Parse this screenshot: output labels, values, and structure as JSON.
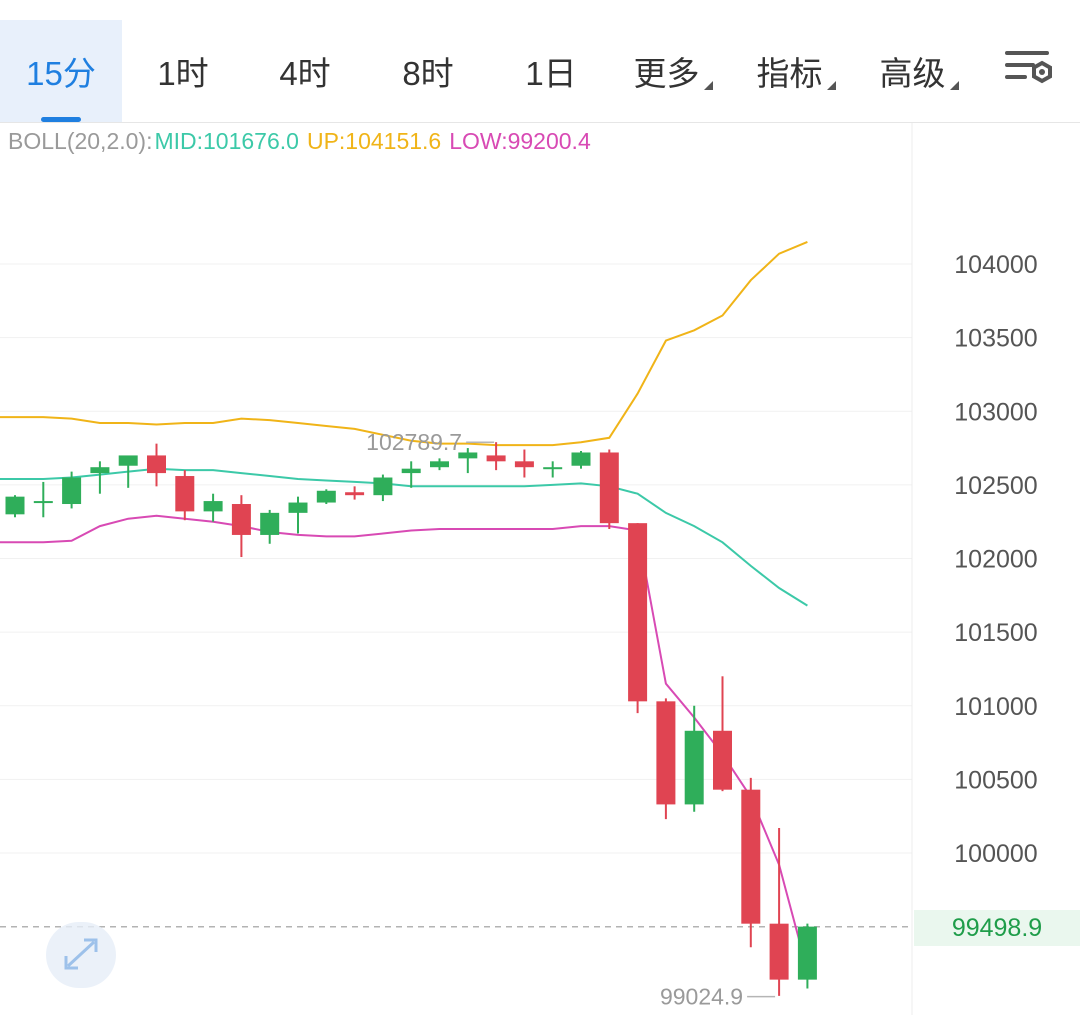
{
  "tabs": [
    {
      "label": "15分",
      "active": true,
      "dropdown": false
    },
    {
      "label": "1时",
      "active": false,
      "dropdown": false
    },
    {
      "label": "4时",
      "active": false,
      "dropdown": false
    },
    {
      "label": "8时",
      "active": false,
      "dropdown": false
    },
    {
      "label": "1日",
      "active": false,
      "dropdown": false
    },
    {
      "label": "更多",
      "active": false,
      "dropdown": true
    },
    {
      "label": "指标",
      "active": false,
      "dropdown": true
    },
    {
      "label": "高级",
      "active": false,
      "dropdown": true
    }
  ],
  "settings_icon": "chart-settings-icon",
  "legend": {
    "label": "BOLL(20,2.0):",
    "mid": "MID:101676.0",
    "up": "UP:104151.6",
    "low": "LOW:99200.4"
  },
  "colors": {
    "accent": "#1f7fe0",
    "up_candle": "#2fae5a",
    "down_candle": "#e04452",
    "mid_line": "#3cc9a8",
    "up_line": "#f0b418",
    "low_line": "#d84ab4",
    "label_gray": "#9a9a9a"
  },
  "current_price": "99498.9",
  "expand_icon": "expand-icon",
  "chart_data": {
    "type": "candlestick",
    "yticks": [
      "104000",
      "103500",
      "103000",
      "102500",
      "102000",
      "101500",
      "101000",
      "100500",
      "100000"
    ],
    "ylim": [
      98950,
      104950
    ],
    "high_marker": "102789.7",
    "low_marker": "99024.9",
    "candles": [
      {
        "o": 102300,
        "h": 102430,
        "c": 102420,
        "l": 102280
      },
      {
        "o": 102380,
        "h": 102520,
        "c": 102390,
        "l": 102280
      },
      {
        "o": 102370,
        "h": 102590,
        "c": 102550,
        "l": 102340
      },
      {
        "o": 102580,
        "h": 102660,
        "c": 102620,
        "l": 102440
      },
      {
        "o": 102630,
        "h": 102680,
        "c": 102700,
        "l": 102480
      },
      {
        "o": 102700,
        "h": 102780,
        "c": 102580,
        "l": 102490
      },
      {
        "o": 102560,
        "h": 102600,
        "c": 102320,
        "l": 102260
      },
      {
        "o": 102320,
        "h": 102440,
        "c": 102390,
        "l": 102250
      },
      {
        "o": 102370,
        "h": 102430,
        "c": 102160,
        "l": 102010
      },
      {
        "o": 102160,
        "h": 102330,
        "c": 102310,
        "l": 102100
      },
      {
        "o": 102310,
        "h": 102420,
        "c": 102380,
        "l": 102170
      },
      {
        "o": 102380,
        "h": 102470,
        "c": 102460,
        "l": 102370
      },
      {
        "o": 102450,
        "h": 102490,
        "c": 102430,
        "l": 102400
      },
      {
        "o": 102430,
        "h": 102570,
        "c": 102550,
        "l": 102390
      },
      {
        "o": 102580,
        "h": 102660,
        "c": 102610,
        "l": 102480
      },
      {
        "o": 102620,
        "h": 102680,
        "c": 102660,
        "l": 102600
      },
      {
        "o": 102680,
        "h": 102750,
        "c": 102720,
        "l": 102580
      },
      {
        "o": 102700,
        "h": 102790,
        "c": 102660,
        "l": 102600
      },
      {
        "o": 102660,
        "h": 102740,
        "c": 102620,
        "l": 102550
      },
      {
        "o": 102610,
        "h": 102660,
        "c": 102620,
        "l": 102550
      },
      {
        "o": 102630,
        "h": 102730,
        "c": 102720,
        "l": 102610
      },
      {
        "o": 102720,
        "h": 102740,
        "c": 102240,
        "l": 102200
      },
      {
        "o": 102240,
        "h": 102240,
        "c": 101030,
        "l": 100950
      },
      {
        "o": 101030,
        "h": 101050,
        "c": 100330,
        "l": 100230
      },
      {
        "o": 100330,
        "h": 101000,
        "c": 100830,
        "l": 100280
      },
      {
        "o": 100830,
        "h": 101200,
        "c": 100430,
        "l": 100420
      },
      {
        "o": 100430,
        "h": 100510,
        "c": 99520,
        "l": 99360
      },
      {
        "o": 99520,
        "h": 100170,
        "c": 99140,
        "l": 99030
      },
      {
        "o": 99140,
        "h": 99520,
        "c": 99500,
        "l": 99080
      }
    ],
    "boll_up": [
      102960,
      102960,
      102950,
      102920,
      102920,
      102910,
      102920,
      102920,
      102950,
      102940,
      102920,
      102900,
      102880,
      102840,
      102800,
      102780,
      102780,
      102770,
      102770,
      102770,
      102790,
      102820,
      103120,
      103480,
      103550,
      103650,
      103890,
      104070,
      104150
    ],
    "boll_mid": [
      102540,
      102540,
      102550,
      102570,
      102590,
      102610,
      102600,
      102600,
      102580,
      102560,
      102540,
      102530,
      102520,
      102510,
      102490,
      102490,
      102490,
      102490,
      102490,
      102500,
      102510,
      102490,
      102440,
      102310,
      102220,
      102110,
      101950,
      101800,
      101680
    ],
    "boll_low": [
      102110,
      102110,
      102120,
      102220,
      102270,
      102290,
      102270,
      102250,
      102220,
      102180,
      102160,
      102150,
      102150,
      102170,
      102190,
      102200,
      102200,
      102200,
      102200,
      102200,
      102220,
      102220,
      102190,
      101150,
      100920,
      100670,
      100380,
      99920,
      99200
    ]
  }
}
